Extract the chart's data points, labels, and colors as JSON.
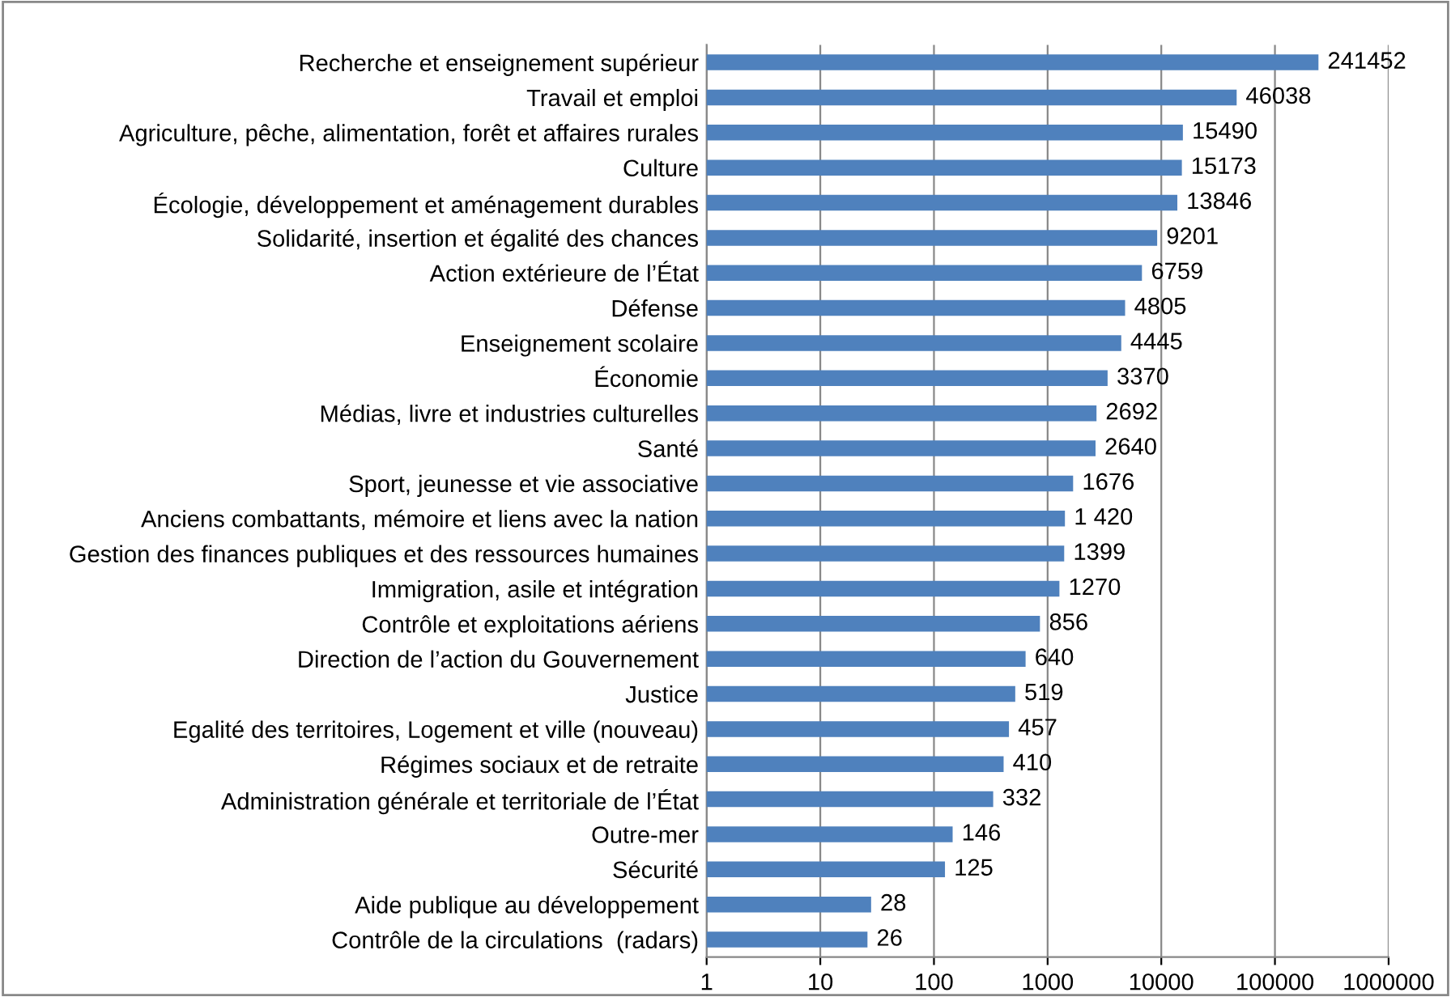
{
  "chart_data": {
    "type": "bar",
    "orientation": "horizontal",
    "log": "x",
    "grid": "x",
    "color": "#4f81bd",
    "categories": [
      "Recherche et enseignement supérieur",
      "Travail et emploi",
      "Agriculture, pêche, alimentation, forêt et affaires rurales",
      "Culture",
      "Écologie, développement et aménagement durables",
      "Solidarité, insertion et égalité des chances",
      "Action extérieure de l’État",
      "Défense",
      "Enseignement scolaire",
      "Économie",
      "Médias, livre et industries culturelles",
      "Santé",
      "Sport, jeunesse et vie associative",
      "Anciens combattants, mémoire et liens avec la nation",
      "Gestion des finances publiques et des ressources humaines",
      "Immigration, asile et intégration",
      "Contrôle et exploitations aériens",
      "Direction de l’action du Gouvernement",
      "Justice",
      "Egalité des territoires, Logement et ville (nouveau)",
      "Régimes sociaux et de retraite",
      "Administration générale et territoriale de l’État",
      "Outre-mer",
      "Sécurité",
      "Aide publique au développement",
      "Contrôle de la circulations  (radars)"
    ],
    "values": [
      241452,
      46038,
      15490,
      15173,
      13846,
      9201,
      6759,
      4805,
      4445,
      3370,
      2692,
      2640,
      1676,
      1420,
      1399,
      1270,
      856,
      640,
      519,
      457,
      410,
      332,
      146,
      125,
      28,
      26
    ],
    "value_labels": [
      "241452",
      "46038",
      "15490",
      "15173",
      "13846",
      "9201",
      "6759",
      "4805",
      "4445",
      "3370",
      "2692",
      "2640",
      "1676",
      "1 420",
      "1399",
      "1270",
      "856",
      "640",
      "519",
      "457",
      "410",
      "332",
      "146",
      "125",
      "28",
      "26"
    ],
    "xlim": [
      1,
      1000000
    ],
    "xticks": [
      1,
      10,
      100,
      1000,
      10000,
      100000,
      1000000
    ]
  }
}
